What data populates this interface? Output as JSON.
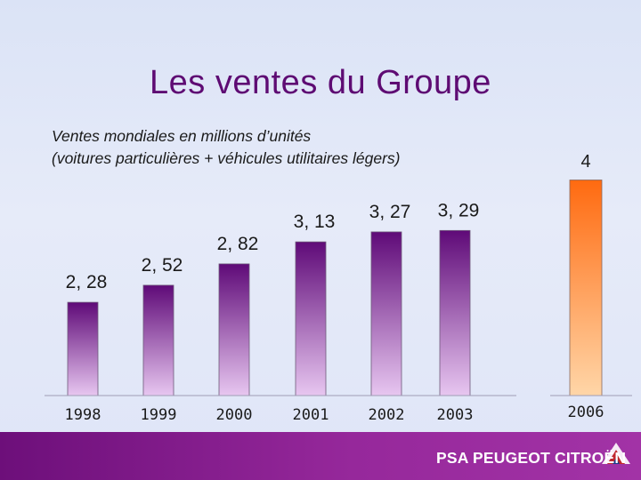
{
  "slide": {
    "title": "Les ventes du Groupe",
    "subtitle_line1": "Ventes mondiales en millions d’unités",
    "subtitle_line2": "(voitures particulières + véhicules utilitaires légers)"
  },
  "footer": {
    "brand": "PSA PEUGEOT CITROËN"
  },
  "colors": {
    "title": "#5e0b73",
    "bar_top": "#5f0a78",
    "bar_bottom": "#e7c6f0",
    "forecast_top": "#ff6a10",
    "forecast_bottom": "#ffd6a8",
    "footer": "#8b1e91"
  },
  "chart_data": {
    "type": "bar",
    "categories": [
      "1998",
      "1999",
      "2000",
      "2001",
      "2002",
      "2003",
      "2006"
    ],
    "values": [
      2.28,
      2.52,
      2.82,
      3.13,
      3.27,
      3.29,
      4
    ],
    "value_labels": [
      "2, 28",
      "2, 52",
      "2, 82",
      "3, 13",
      "3, 27",
      "3, 29",
      "4"
    ],
    "title": "Les ventes du Groupe",
    "subtitle": "Ventes mondiales en millions d’unités (voitures particulières + véhicules utilitaires légers)",
    "xlabel": "",
    "ylabel": "",
    "grid": false,
    "highlight": "2006"
  }
}
